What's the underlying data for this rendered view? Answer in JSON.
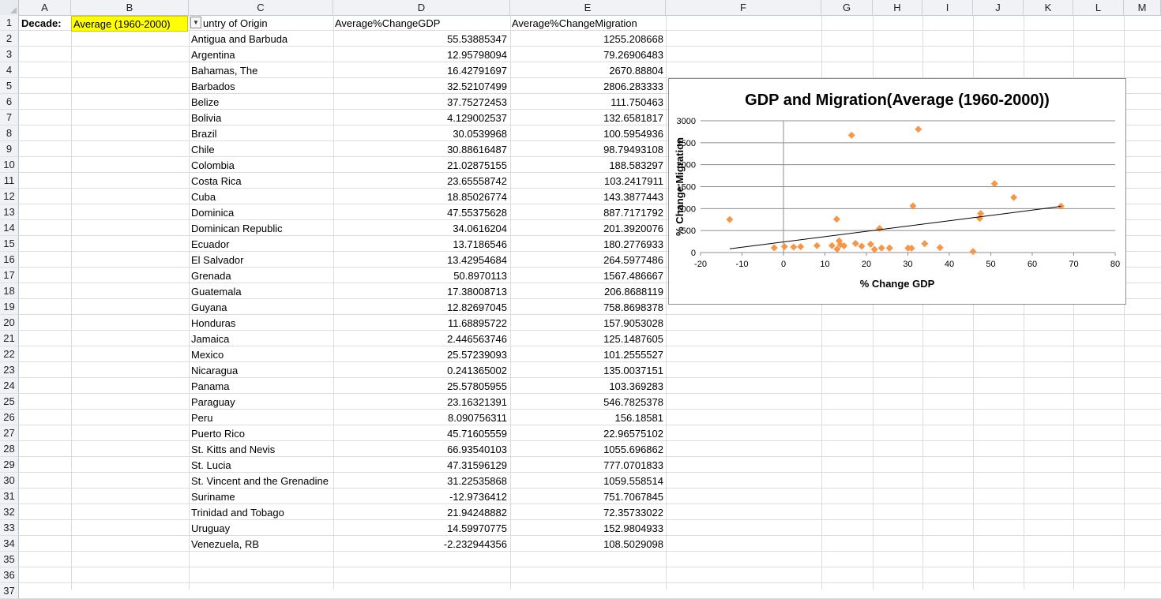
{
  "columns": [
    "A",
    "B",
    "C",
    "D",
    "E",
    "F",
    "G",
    "H",
    "I",
    "J",
    "K",
    "L",
    "M"
  ],
  "rows": [
    "1",
    "2",
    "3",
    "4",
    "5",
    "6",
    "7",
    "8",
    "9",
    "10",
    "11",
    "12",
    "13",
    "14",
    "15",
    "16",
    "17",
    "18",
    "19",
    "20",
    "21",
    "22",
    "23",
    "24",
    "25",
    "26",
    "27",
    "28",
    "29",
    "30",
    "31",
    "32",
    "33",
    "34",
    "35",
    "36",
    "37"
  ],
  "header": {
    "decade_label": "Decade:",
    "decade_value": "Average (1960-2000)",
    "country_header": "untry of Origin",
    "gdp_header": "Average%ChangeGDP",
    "migration_header": "Average%ChangeMigration"
  },
  "table": [
    {
      "country": "Antigua and Barbuda",
      "gdp": "55.53885347",
      "mig": "1255.208668"
    },
    {
      "country": "Argentina",
      "gdp": "12.95798094",
      "mig": "79.26906483"
    },
    {
      "country": "Bahamas, The",
      "gdp": "16.42791697",
      "mig": "2670.88804"
    },
    {
      "country": "Barbados",
      "gdp": "32.52107499",
      "mig": "2806.283333"
    },
    {
      "country": "Belize",
      "gdp": "37.75272453",
      "mig": "111.750463"
    },
    {
      "country": "Bolivia",
      "gdp": "4.129002537",
      "mig": "132.6581817"
    },
    {
      "country": "Brazil",
      "gdp": "30.0539968",
      "mig": "100.5954936"
    },
    {
      "country": "Chile",
      "gdp": "30.88616487",
      "mig": "98.79493108"
    },
    {
      "country": "Colombia",
      "gdp": "21.02875155",
      "mig": "188.583297"
    },
    {
      "country": "Costa Rica",
      "gdp": "23.65558742",
      "mig": "103.2417911"
    },
    {
      "country": "Cuba",
      "gdp": "18.85026774",
      "mig": "143.3877443"
    },
    {
      "country": "Dominica",
      "gdp": "47.55375628",
      "mig": "887.7171792"
    },
    {
      "country": "Dominican Republic",
      "gdp": "34.0616204",
      "mig": "201.3920076"
    },
    {
      "country": "Ecuador",
      "gdp": "13.7186546",
      "mig": "180.2776933"
    },
    {
      "country": "El Salvador",
      "gdp": "13.42954684",
      "mig": "264.5977486"
    },
    {
      "country": "Grenada",
      "gdp": "50.8970113",
      "mig": "1567.486667"
    },
    {
      "country": "Guatemala",
      "gdp": "17.38008713",
      "mig": "206.8688119"
    },
    {
      "country": "Guyana",
      "gdp": "12.82697045",
      "mig": "758.8698378"
    },
    {
      "country": "Honduras",
      "gdp": "11.68895722",
      "mig": "157.9053028"
    },
    {
      "country": "Jamaica",
      "gdp": "2.446563746",
      "mig": "125.1487605"
    },
    {
      "country": "Mexico",
      "gdp": "25.57239093",
      "mig": "101.2555527"
    },
    {
      "country": "Nicaragua",
      "gdp": "0.241365002",
      "mig": "135.0037151"
    },
    {
      "country": "Panama",
      "gdp": "25.57805955",
      "mig": "103.369283"
    },
    {
      "country": "Paraguay",
      "gdp": "23.16321391",
      "mig": "546.7825378"
    },
    {
      "country": "Peru",
      "gdp": "8.090756311",
      "mig": "156.18581"
    },
    {
      "country": "Puerto Rico",
      "gdp": "45.71605559",
      "mig": "22.96575102"
    },
    {
      "country": "St. Kitts and Nevis",
      "gdp": "66.93540103",
      "mig": "1055.696862"
    },
    {
      "country": "St. Lucia",
      "gdp": "47.31596129",
      "mig": "777.0701833"
    },
    {
      "country": "St. Vincent and the Grenadine",
      "gdp": "31.22535868",
      "mig": "1059.558514"
    },
    {
      "country": "Suriname",
      "gdp": "-12.9736412",
      "mig": "751.7067845"
    },
    {
      "country": "Trinidad and Tobago",
      "gdp": "21.94248882",
      "mig": "72.35733022"
    },
    {
      "country": "Uruguay",
      "gdp": "14.59970775",
      "mig": "152.9804933"
    },
    {
      "country": "Venezuela, RB",
      "gdp": "-2.232944356",
      "mig": "108.5029098"
    }
  ],
  "chart_data": {
    "type": "scatter",
    "title": "GDP and Migration(Average (1960-2000))",
    "xlabel": "% Change GDP",
    "ylabel": "% Change Migration",
    "xlim": [
      -20,
      80
    ],
    "ylim": [
      0,
      3000
    ],
    "xticks": [
      "-20",
      "-10",
      "0",
      "10",
      "20",
      "30",
      "40",
      "50",
      "60",
      "70",
      "80"
    ],
    "yticks": [
      "0",
      "500",
      "1000",
      "1500",
      "2000",
      "2500",
      "3000"
    ],
    "grid": "horizontal",
    "legend": "none",
    "marker_color": "#f79646",
    "trendline_color": "#000000",
    "trendline": {
      "type": "linear",
      "x": [
        -12.97,
        66.94
      ],
      "y": [
        85,
        1050
      ]
    },
    "x": [
      55.54,
      12.96,
      16.43,
      32.52,
      37.75,
      4.13,
      30.05,
      30.89,
      21.03,
      23.66,
      18.85,
      47.55,
      34.06,
      13.72,
      13.43,
      50.9,
      17.38,
      12.83,
      11.69,
      2.45,
      25.57,
      0.24,
      25.58,
      23.16,
      8.09,
      45.72,
      66.94,
      47.32,
      31.23,
      -12.97,
      21.94,
      14.6,
      -2.23
    ],
    "y": [
      1255.2,
      79.3,
      2670.9,
      2806.3,
      111.8,
      132.7,
      100.6,
      98.8,
      188.6,
      103.2,
      143.4,
      887.7,
      201.4,
      180.3,
      264.6,
      1567.5,
      206.9,
      758.9,
      157.9,
      125.1,
      101.3,
      135.0,
      103.4,
      546.8,
      156.2,
      23.0,
      1055.7,
      777.1,
      1059.6,
      751.7,
      72.4,
      153.0,
      108.5
    ]
  }
}
